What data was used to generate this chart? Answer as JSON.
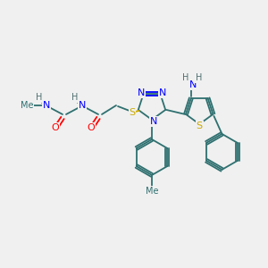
{
  "bg_color": "#f0f0f0",
  "atom_colors": {
    "N": "#0000ff",
    "O": "#ff0000",
    "S": "#ccaa00",
    "C": "#2f7070",
    "H": "#507070"
  },
  "bond_color": "#2f7070",
  "lw": 1.3
}
